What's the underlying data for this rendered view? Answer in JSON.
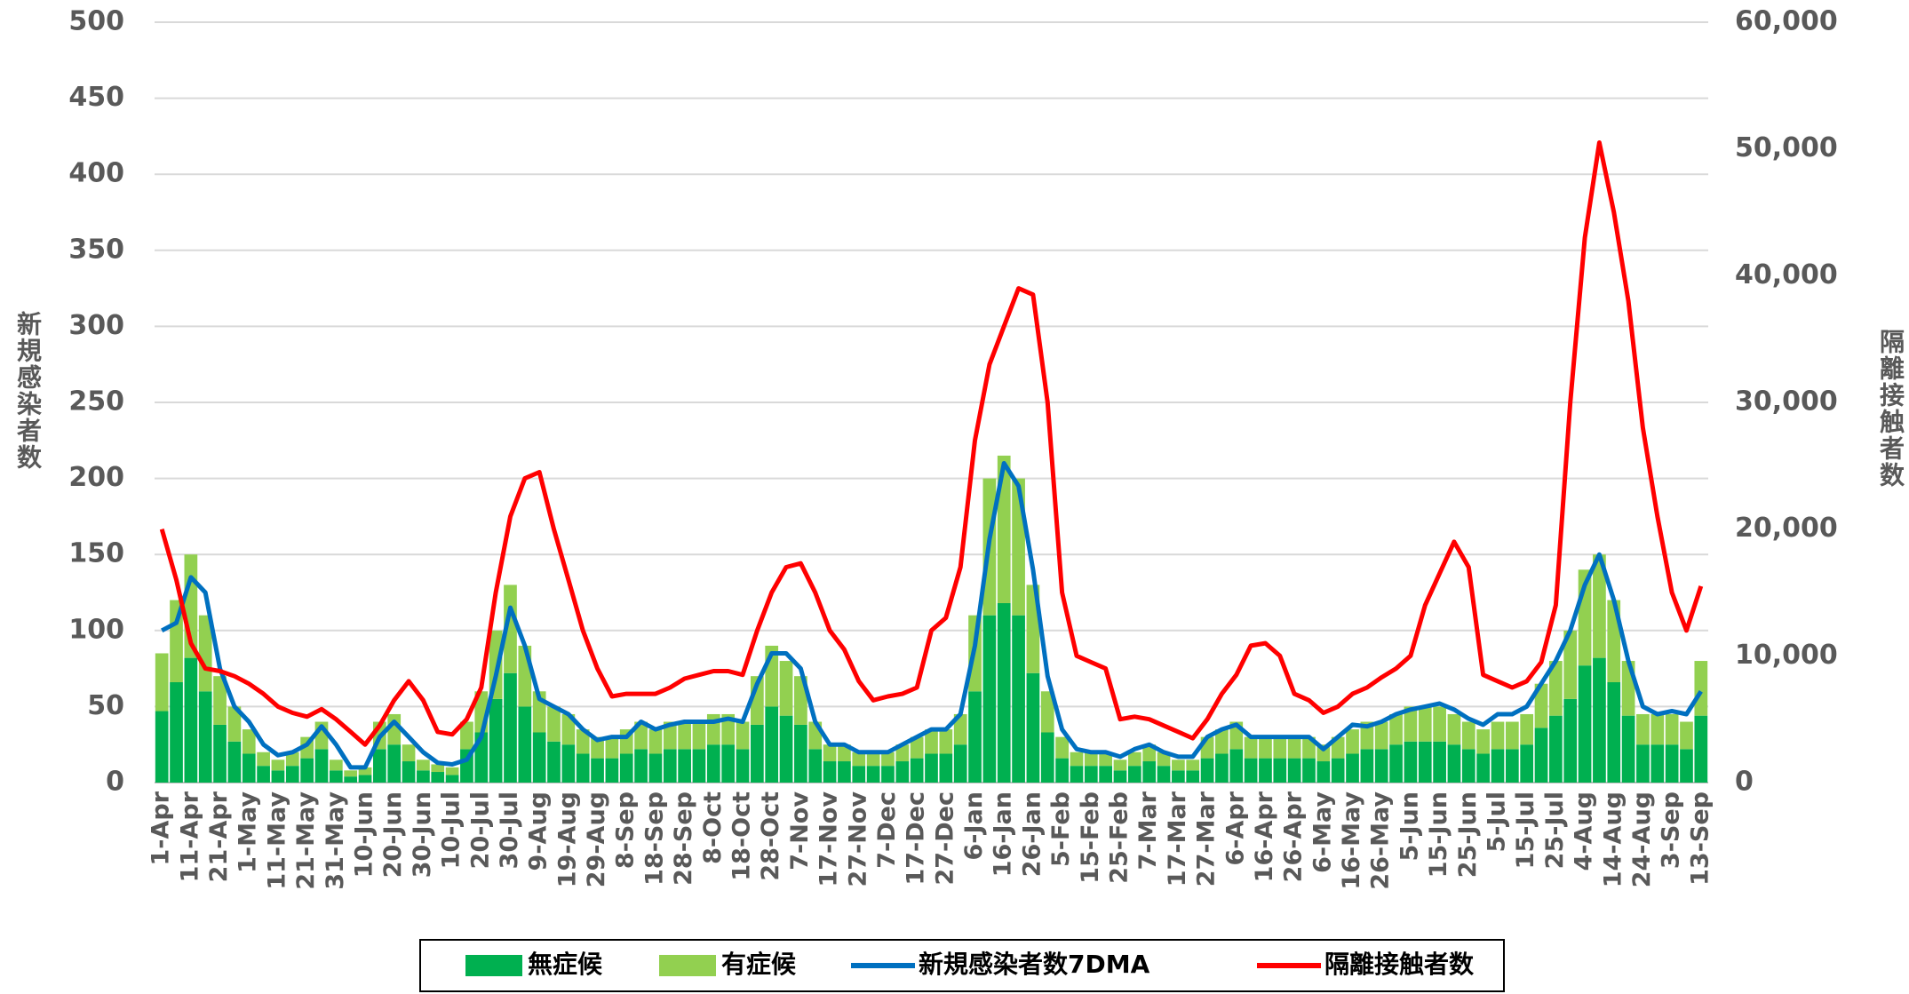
{
  "chart_data": {
    "type": "bar_line",
    "y_label": "新規感染者数",
    "y2_label": "隔離接触者数",
    "categories": [
      "1-Apr",
      null,
      "11-Apr",
      null,
      "21-Apr",
      null,
      "1-May",
      null,
      "11-May",
      null,
      "21-May",
      null,
      "31-May",
      null,
      "10-Jun",
      null,
      "20-Jun",
      null,
      "30-Jun",
      null,
      "10-Jul",
      null,
      "20-Jul",
      null,
      "30-Jul",
      null,
      "9-Aug",
      null,
      "19-Aug",
      null,
      "29-Aug",
      null,
      "8-Sep",
      null,
      "18-Sep",
      null,
      "28-Sep",
      null,
      "8-Oct",
      null,
      "18-Oct",
      null,
      "28-Oct",
      null,
      "7-Nov",
      null,
      "17-Nov",
      null,
      "27-Nov",
      null,
      "7-Dec",
      null,
      "17-Dec",
      null,
      "27-Dec",
      null,
      "6-Jan",
      null,
      "16-Jan",
      null,
      "26-Jan",
      null,
      "5-Feb",
      null,
      "15-Feb",
      null,
      "25-Feb",
      null,
      "7-Mar",
      null,
      "17-Mar",
      null,
      "27-Mar",
      null,
      "6-Apr",
      null,
      "16-Apr",
      null,
      "26-Apr",
      null,
      "6-May",
      null,
      "16-May",
      null,
      "26-May",
      null,
      "5-Jun",
      null,
      "15-Jun",
      null,
      "25-Jun",
      null,
      "5-Jul",
      null,
      "15-Jul",
      null,
      "25-Jul",
      null,
      "4-Aug",
      null,
      "14-Aug",
      null,
      "24-Aug",
      null,
      "3-Sep",
      null,
      "13-Sep"
    ],
    "series": [
      {
        "name": "無症候",
        "color": "#00b050",
        "kind": "bar",
        "values": [
          47,
          66,
          82,
          60,
          38,
          27,
          19,
          11,
          8,
          11,
          16,
          22,
          8,
          4,
          5,
          22,
          25,
          14,
          8,
          7,
          5,
          22,
          33,
          55,
          72,
          50,
          33,
          27,
          25,
          19,
          16,
          16,
          19,
          22,
          19,
          22,
          22,
          22,
          25,
          25,
          22,
          38,
          50,
          44,
          38,
          22,
          14,
          14,
          11,
          11,
          11,
          14,
          16,
          19,
          19,
          25,
          60,
          110,
          118,
          110,
          72,
          33,
          16,
          11,
          11,
          11,
          8,
          11,
          14,
          11,
          8,
          8,
          16,
          19,
          22,
          16,
          16,
          16,
          16,
          16,
          14,
          16,
          19,
          22,
          22,
          25,
          27,
          27,
          27,
          25,
          22,
          19,
          22,
          22,
          25,
          36,
          44,
          55,
          77,
          82,
          66,
          44,
          25,
          25,
          25,
          22,
          44
        ]
      },
      {
        "name": "有症候",
        "color": "#92d050",
        "kind": "bar",
        "values": [
          38,
          54,
          68,
          50,
          32,
          23,
          16,
          9,
          7,
          9,
          14,
          18,
          7,
          4,
          5,
          18,
          20,
          11,
          7,
          5,
          5,
          18,
          27,
          45,
          58,
          40,
          27,
          23,
          20,
          16,
          14,
          14,
          16,
          18,
          16,
          18,
          18,
          18,
          20,
          20,
          18,
          32,
          40,
          36,
          32,
          18,
          11,
          11,
          9,
          9,
          9,
          11,
          14,
          16,
          16,
          20,
          50,
          90,
          97,
          90,
          58,
          27,
          14,
          9,
          9,
          9,
          7,
          9,
          11,
          9,
          7,
          7,
          14,
          16,
          18,
          14,
          14,
          14,
          14,
          14,
          11,
          14,
          16,
          18,
          18,
          20,
          23,
          23,
          23,
          20,
          18,
          16,
          18,
          18,
          20,
          29,
          36,
          45,
          63,
          68,
          54,
          36,
          20,
          20,
          20,
          18,
          36
        ]
      },
      {
        "name": "新規感染者数7DMA",
        "color": "#0070c0",
        "kind": "line",
        "values": [
          100,
          105,
          135,
          125,
          75,
          50,
          40,
          25,
          18,
          20,
          25,
          37,
          25,
          10,
          10,
          30,
          40,
          30,
          20,
          13,
          12,
          15,
          30,
          70,
          115,
          90,
          55,
          50,
          45,
          35,
          28,
          30,
          30,
          40,
          35,
          38,
          40,
          40,
          40,
          42,
          40,
          65,
          85,
          85,
          75,
          40,
          25,
          25,
          20,
          20,
          20,
          25,
          30,
          35,
          35,
          45,
          90,
          160,
          210,
          195,
          140,
          70,
          35,
          22,
          20,
          20,
          17,
          22,
          25,
          20,
          17,
          17,
          30,
          35,
          38,
          30,
          30,
          30,
          30,
          30,
          22,
          30,
          38,
          37,
          40,
          45,
          48,
          50,
          52,
          48,
          42,
          38,
          45,
          45,
          50,
          65,
          80,
          100,
          130,
          150,
          120,
          80,
          50,
          45,
          47,
          45,
          60
        ]
      },
      {
        "name": "隔離接触者数",
        "color": "#ff0000",
        "kind": "line",
        "axis": "y2",
        "values": [
          20000,
          16000,
          11000,
          9000,
          8800,
          8400,
          7800,
          7000,
          6000,
          5500,
          5200,
          5800,
          5000,
          4000,
          3000,
          4500,
          6500,
          8000,
          6500,
          4000,
          3800,
          5000,
          7500,
          15000,
          21000,
          24000,
          24500,
          20000,
          16000,
          12000,
          9000,
          6800,
          7000,
          7000,
          7000,
          7500,
          8200,
          8500,
          8800,
          8800,
          8500,
          12000,
          15000,
          17000,
          17300,
          15000,
          12000,
          10500,
          8000,
          6500,
          6800,
          7000,
          7500,
          12000,
          13000,
          17000,
          27000,
          33000,
          36000,
          39000,
          38500,
          30000,
          15000,
          10000,
          9500,
          9000,
          5000,
          5200,
          5000,
          4500,
          4000,
          3500,
          5000,
          7000,
          8500,
          10800,
          11000,
          10000,
          7000,
          6500,
          5500,
          6000,
          7000,
          7500,
          8300,
          9000,
          10000,
          14000,
          16500,
          19000,
          17000,
          8500,
          8000,
          7500,
          8000,
          9500,
          14000,
          30000,
          43000,
          50500,
          45000,
          38000,
          28000,
          21000,
          15000,
          12000,
          15500
        ]
      }
    ],
    "ylim": [
      0,
      500
    ],
    "yticks": [
      0,
      50,
      100,
      150,
      200,
      250,
      300,
      350,
      400,
      450,
      500
    ],
    "y2lim": [
      0,
      60000
    ],
    "y2ticks": [
      0,
      {
        "value": 10000,
        "label": "10,000"
      },
      {
        "value": 20000,
        "label": "20,000"
      },
      {
        "value": 30000,
        "label": "30,000"
      },
      {
        "value": 40000,
        "label": "40,000"
      },
      {
        "value": 50000,
        "label": "50,000"
      },
      {
        "value": 60000,
        "label": "60,000"
      }
    ],
    "grid": true,
    "legend": "bottom"
  }
}
